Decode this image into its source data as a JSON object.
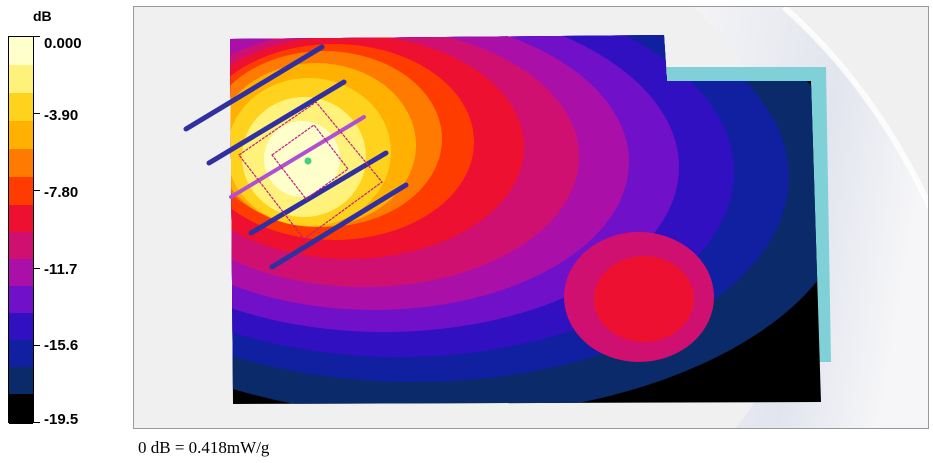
{
  "legend": {
    "unit": "dB",
    "ticks": [
      "0.000",
      "-3.90",
      "-7.80",
      "-11.7",
      "-15.6",
      "-19.5"
    ],
    "colors": [
      "#ffffcc",
      "#fff27a",
      "#ffd21e",
      "#ffb000",
      "#ff7a00",
      "#ff3c00",
      "#ee1030",
      "#d01070",
      "#aa10a8",
      "#7010c8",
      "#3010c0",
      "#1020a0",
      "#0a2a6a",
      "#000000"
    ]
  },
  "scale_note": "0 dB = 0.418mW/g",
  "scene": {
    "background": "#f0f0f0",
    "phantom_color": "#e4e6ee",
    "device_outline_color": "#80d0d8",
    "antenna_color": "#3030a0",
    "antenna_stroke_color": "#c02080",
    "probe_point_color": "#40d080"
  }
}
